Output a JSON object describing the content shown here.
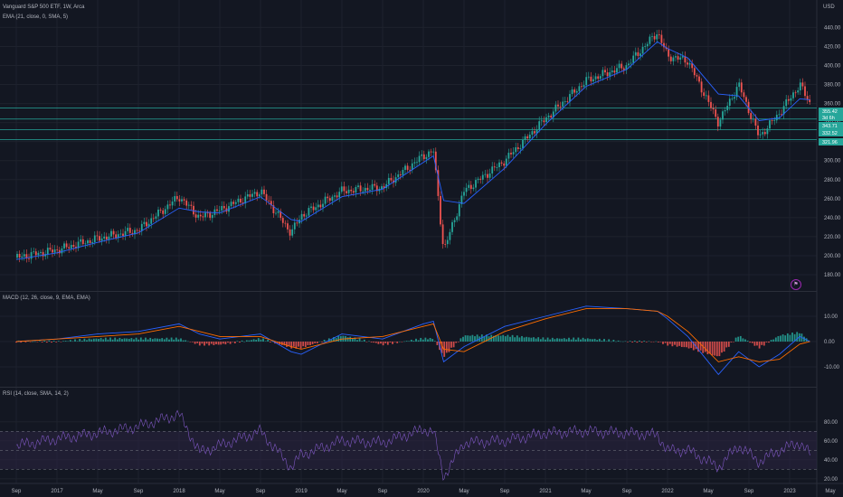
{
  "header": {
    "title": "Vanguard S&P 500 ETF, 1W, Arca",
    "ema_label": "EMA (21, close, 0, SMA, 5)",
    "currency": "USD"
  },
  "macd_pane": {
    "label": "MACD (12, 26, close, 9, EMA, EMA)"
  },
  "rsi_pane": {
    "label": "RSI (14, close, SMA, 14, 2)"
  },
  "price_tags": [
    {
      "value": "355.42",
      "color": "#26a69a"
    },
    {
      "value": "3d 6h",
      "color": "#26a69a"
    },
    {
      "value": "343.71",
      "color": "#26a69a"
    },
    {
      "value": "332.52",
      "color": "#26a69a"
    },
    {
      "value": "321.96",
      "color": "#26a69a"
    }
  ],
  "flag_glyph": "⚑",
  "colors": {
    "background": "#131722",
    "up": "#26a69a",
    "down": "#ef5350",
    "ema": "#2962ff",
    "macd_line": "#2962ff",
    "signal_line": "#ff6d00",
    "rsi": "#7e57c2",
    "rsi_band": "#2a2340"
  },
  "chart_data": [
    {
      "type": "candlestick",
      "title": "Vanguard S&P 500 ETF, 1W, Arca",
      "ylabel": "USD",
      "ylim": [
        170,
        450
      ],
      "x_ticks": [
        "Sep",
        "2017",
        "May",
        "Sep",
        "2018",
        "May",
        "Sep",
        "2019",
        "May",
        "Sep",
        "2020",
        "May",
        "Sep",
        "2021",
        "May",
        "Sep",
        "2022",
        "May",
        "Sep",
        "2023",
        "May"
      ],
      "y_ticks": [
        180.0,
        200.0,
        220.0,
        240.0,
        260.0,
        280.0,
        300.0,
        320.0,
        340.0,
        360.0,
        380.0,
        400.0,
        420.0,
        440.0
      ],
      "horizontal_levels": [
        355.42,
        343.71,
        332.52,
        321.96
      ],
      "series": [
        {
          "name": "Price",
          "x": [
            "2016-09",
            "2017-01",
            "2017-05",
            "2017-09",
            "2018-01",
            "2018-03",
            "2018-05",
            "2018-09",
            "2018-12",
            "2019-01",
            "2019-05",
            "2019-09",
            "2020-01",
            "2020-02",
            "2020-03",
            "2020-05",
            "2020-09",
            "2021-01",
            "2021-05",
            "2021-09",
            "2021-12",
            "2022-01",
            "2022-03",
            "2022-06",
            "2022-08",
            "2022-10",
            "2022-12",
            "2023-02",
            "2023-03"
          ],
          "values": [
            198,
            206,
            218,
            227,
            262,
            240,
            248,
            268,
            224,
            242,
            268,
            272,
            305,
            310,
            205,
            268,
            300,
            344,
            384,
            400,
            435,
            410,
            405,
            340,
            380,
            325,
            350,
            380,
            360
          ]
        },
        {
          "name": "EMA",
          "x": [
            "2016-09",
            "2017-01",
            "2017-05",
            "2017-09",
            "2018-01",
            "2018-03",
            "2018-05",
            "2018-09",
            "2018-12",
            "2019-01",
            "2019-05",
            "2019-09",
            "2020-01",
            "2020-02",
            "2020-03",
            "2020-05",
            "2020-09",
            "2021-01",
            "2021-05",
            "2021-09",
            "2021-12",
            "2022-01",
            "2022-03",
            "2022-06",
            "2022-08",
            "2022-10",
            "2022-12",
            "2023-02",
            "2023-03"
          ],
          "values": [
            196,
            203,
            214,
            224,
            250,
            246,
            245,
            262,
            238,
            236,
            262,
            270,
            298,
            305,
            258,
            255,
            292,
            338,
            378,
            396,
            425,
            418,
            408,
            370,
            368,
            342,
            345,
            365,
            364
          ]
        }
      ]
    },
    {
      "type": "line",
      "title": "MACD (12, 26, close, 9, EMA, EMA)",
      "ylim": [
        -15,
        15
      ],
      "y_ticks": [
        10.0,
        0.0,
        -10.0
      ],
      "series": [
        {
          "name": "MACD",
          "x": [
            "2016-09",
            "2017-01",
            "2017-05",
            "2017-09",
            "2018-01",
            "2018-03",
            "2018-05",
            "2018-09",
            "2018-12",
            "2019-01",
            "2019-05",
            "2019-09",
            "2020-01",
            "2020-02",
            "2020-03",
            "2020-05",
            "2020-09",
            "2021-01",
            "2021-05",
            "2021-09",
            "2021-12",
            "2022-01",
            "2022-03",
            "2022-06",
            "2022-08",
            "2022-10",
            "2022-12",
            "2023-02",
            "2023-03"
          ],
          "values": [
            0,
            1,
            3,
            4,
            7,
            3,
            1,
            3,
            -4,
            -5,
            3,
            1,
            7,
            8,
            -8,
            -2,
            6,
            10,
            14,
            13,
            12,
            9,
            2,
            -13,
            -4,
            -10,
            -5,
            2,
            0
          ]
        },
        {
          "name": "Signal",
          "x": [
            "2016-09",
            "2017-01",
            "2017-05",
            "2017-09",
            "2018-01",
            "2018-03",
            "2018-05",
            "2018-09",
            "2018-12",
            "2019-01",
            "2019-05",
            "2019-09",
            "2020-01",
            "2020-02",
            "2020-03",
            "2020-05",
            "2020-09",
            "2021-01",
            "2021-05",
            "2021-09",
            "2021-12",
            "2022-01",
            "2022-03",
            "2022-06",
            "2022-08",
            "2022-10",
            "2022-12",
            "2023-02",
            "2023-03"
          ],
          "values": [
            0,
            1,
            2,
            3,
            6,
            4,
            2,
            2,
            -2,
            -3,
            1,
            2,
            6,
            7,
            -3,
            -4,
            4,
            9,
            13,
            13,
            12,
            10,
            4,
            -8,
            -6,
            -8,
            -7,
            -1,
            0
          ]
        }
      ]
    },
    {
      "type": "line",
      "title": "RSI (14, close, SMA, 14, 2)",
      "ylim": [
        15,
        95
      ],
      "y_ticks": [
        80.0,
        60.0,
        40.0,
        20.0
      ],
      "band": [
        30,
        70
      ],
      "series": [
        {
          "name": "RSI",
          "x": [
            "2016-09",
            "2017-01",
            "2017-05",
            "2017-09",
            "2018-01",
            "2018-03",
            "2018-05",
            "2018-09",
            "2018-12",
            "2019-01",
            "2019-05",
            "2019-09",
            "2020-01",
            "2020-02",
            "2020-03",
            "2020-05",
            "2020-09",
            "2021-01",
            "2021-05",
            "2021-09",
            "2021-12",
            "2022-01",
            "2022-03",
            "2022-06",
            "2022-08",
            "2022-10",
            "2022-12",
            "2023-02",
            "2023-03"
          ],
          "values": [
            55,
            62,
            68,
            75,
            88,
            48,
            55,
            70,
            32,
            45,
            60,
            58,
            72,
            70,
            22,
            58,
            60,
            68,
            70,
            68,
            66,
            50,
            50,
            32,
            55,
            38,
            50,
            58,
            46
          ]
        }
      ]
    }
  ]
}
